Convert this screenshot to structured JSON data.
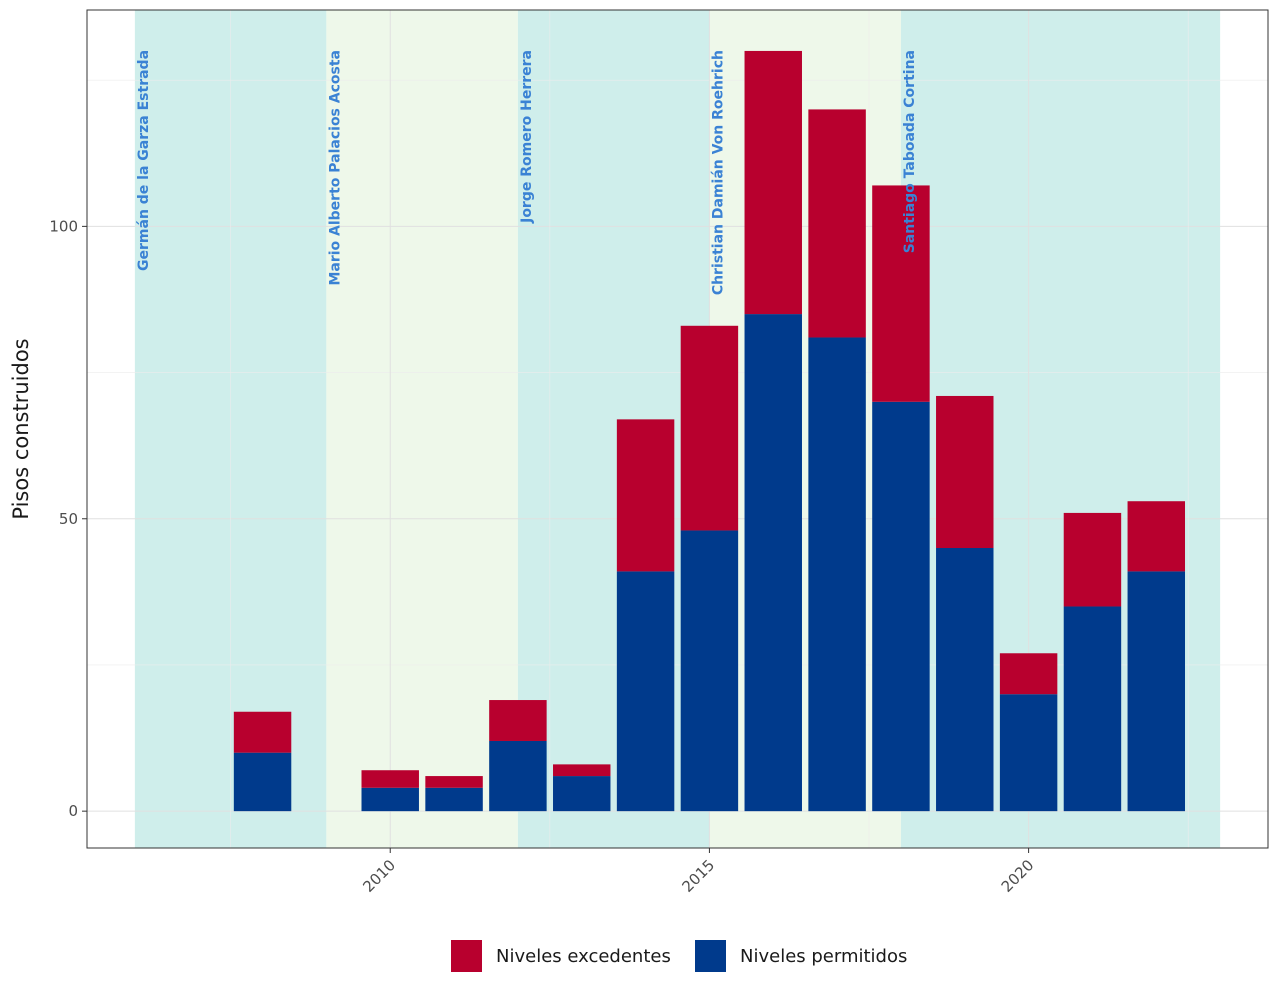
{
  "chart_data": {
    "type": "bar",
    "stacked": true,
    "ylabel": "Pisos construidos",
    "xlabel": "",
    "xlim": [
      2005.25,
      2023.75
    ],
    "ylim": [
      -6.3,
      137
    ],
    "x_ticks": [
      2010,
      2015,
      2020
    ],
    "y_ticks": [
      0,
      50,
      100
    ],
    "grid": true,
    "legend_position": "bottom",
    "years": [
      2008,
      2010,
      2011,
      2012,
      2013,
      2014,
      2015,
      2016,
      2017,
      2018,
      2019,
      2020,
      2021,
      2022
    ],
    "series": [
      {
        "name": "Niveles permitidos",
        "color": "#003a8c",
        "values": [
          10,
          4,
          4,
          12,
          6,
          41,
          48,
          85,
          81,
          70,
          45,
          20,
          35,
          41
        ]
      },
      {
        "name": "Niveles excedentes",
        "color": "#b8002e",
        "values": [
          7,
          3,
          2,
          7,
          2,
          26,
          35,
          45,
          39,
          37,
          26,
          7,
          16,
          12
        ]
      }
    ],
    "legend": [
      {
        "label": "Niveles excedentes",
        "color": "#b8002e"
      },
      {
        "label": "Niveles permitidos",
        "color": "#003a8c"
      }
    ],
    "terms": [
      {
        "name": "Germán de la Garza Estrada",
        "start": 2006.0,
        "end": 2009.0,
        "color": "#cfeeeb"
      },
      {
        "name": "Mario Alberto Palacios Acosta",
        "start": 2009.0,
        "end": 2012.0,
        "color": "#eef8ea"
      },
      {
        "name": "Jorge Romero Herrera",
        "start": 2012.0,
        "end": 2015.0,
        "color": "#cfeeeb"
      },
      {
        "name": "Christian Damián Von Roehrich",
        "start": 2015.0,
        "end": 2018.0,
        "color": "#eef8ea"
      },
      {
        "name": "Santiago Taboada Cortina",
        "start": 2018.0,
        "end": 2023.0,
        "color": "#cfeeeb"
      }
    ]
  }
}
